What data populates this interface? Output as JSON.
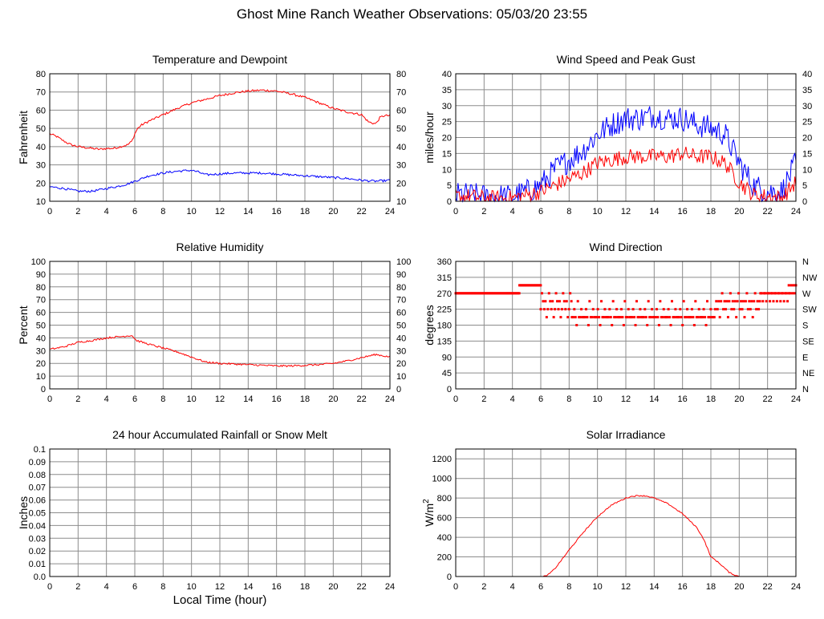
{
  "title": "Ghost Mine Ranch Weather Observations: 05/03/20 23:55",
  "colors": {
    "red": "#ff0000",
    "blue": "#0000ff",
    "grid": "#8c8c8c",
    "frame": "#000000"
  },
  "x_axis_shared_label": "Local Time (hour)",
  "chart_data": [
    {
      "id": "temp",
      "type": "line",
      "title": "Temperature and Dewpoint",
      "ylabel": "Fahrenheit",
      "xlabel": "",
      "xlim": [
        0,
        24
      ],
      "xticks": [
        0,
        2,
        4,
        6,
        8,
        10,
        12,
        14,
        16,
        18,
        20,
        22,
        24
      ],
      "ylim": [
        10,
        80
      ],
      "yticks": [
        10,
        20,
        30,
        40,
        50,
        60,
        70,
        80
      ],
      "right_ticks": [
        "10",
        "20",
        "30",
        "40",
        "50",
        "60",
        "70",
        "80"
      ],
      "grid": true,
      "series": [
        {
          "color": "#ff0000",
          "noise": 0.6,
          "x": [
            0,
            0.5,
            1,
            1.5,
            2,
            2.5,
            3,
            3.5,
            4,
            4.5,
            5,
            5.5,
            5.8,
            6,
            6.2,
            6.5,
            7,
            8,
            9,
            10,
            11,
            12,
            13,
            14,
            15,
            16,
            17,
            18,
            19,
            20,
            21,
            22,
            22.5,
            23,
            23.3,
            23.6,
            24
          ],
          "y": [
            47,
            45.5,
            43,
            41,
            40,
            39.5,
            39,
            38.5,
            39,
            39,
            40,
            41,
            43,
            47,
            50,
            52,
            54,
            57.5,
            61,
            64,
            66,
            68,
            69.5,
            70.5,
            71,
            70.5,
            69,
            67,
            64,
            61,
            59,
            57.5,
            53.5,
            52.5,
            56,
            57,
            57
          ]
        },
        {
          "color": "#0000ff",
          "noise": 0.6,
          "x": [
            0,
            1,
            2,
            3,
            4,
            5,
            5.5,
            6,
            7,
            8,
            9,
            10,
            10.5,
            11,
            12,
            13,
            14,
            15,
            16,
            17,
            18,
            19,
            20,
            21,
            22,
            23,
            24
          ],
          "y": [
            18,
            17,
            15.5,
            15.5,
            17,
            18.5,
            19.5,
            21,
            24,
            25.5,
            26.5,
            27,
            26,
            24.5,
            25,
            25.5,
            25.5,
            25.5,
            25,
            24.5,
            24,
            23.5,
            23,
            22.5,
            21.5,
            21,
            21.5
          ]
        }
      ]
    },
    {
      "id": "wind",
      "type": "line",
      "title": "Wind Speed and Peak Gust",
      "ylabel": "miles/hour",
      "xlabel": "",
      "xlim": [
        0,
        24
      ],
      "xticks": [
        0,
        2,
        4,
        6,
        8,
        10,
        12,
        14,
        16,
        18,
        20,
        22,
        24
      ],
      "ylim": [
        0,
        40
      ],
      "yticks": [
        0,
        5,
        10,
        15,
        20,
        25,
        30,
        35,
        40
      ],
      "right_ticks": [
        "0",
        "5",
        "10",
        "15",
        "20",
        "25",
        "30",
        "35",
        "40"
      ],
      "grid": true,
      "series": [
        {
          "color": "#0000ff",
          "noise": 4,
          "x": [
            0,
            1,
            2,
            3,
            4,
            5,
            6,
            7,
            8,
            9,
            10,
            11,
            12,
            13,
            14,
            15,
            16,
            17,
            18,
            19,
            20,
            21,
            22,
            23,
            24
          ],
          "y": [
            2,
            2,
            1.5,
            1.5,
            1.5,
            3,
            5,
            10,
            13,
            16,
            21,
            24,
            26,
            26,
            27,
            26,
            26,
            24,
            23,
            21,
            12,
            5,
            3,
            3,
            12
          ]
        },
        {
          "color": "#ff0000",
          "noise": 2.5,
          "x": [
            0,
            1,
            2,
            3,
            4,
            5,
            6,
            7,
            8,
            9,
            10,
            11,
            12,
            13,
            14,
            15,
            16,
            17,
            18,
            19,
            20,
            21,
            22,
            23,
            24
          ],
          "y": [
            1.5,
            1.5,
            1,
            1,
            1,
            2,
            3,
            5,
            7,
            9,
            12,
            13,
            14,
            14,
            14,
            14,
            15,
            14,
            14,
            12,
            6,
            2,
            1.5,
            1,
            6
          ]
        }
      ]
    },
    {
      "id": "rh",
      "type": "line",
      "title": "Relative Humidity",
      "ylabel": "Percent",
      "xlabel": "",
      "xlim": [
        0,
        24
      ],
      "xticks": [
        0,
        2,
        4,
        6,
        8,
        10,
        12,
        14,
        16,
        18,
        20,
        22,
        24
      ],
      "ylim": [
        0,
        100
      ],
      "yticks": [
        0,
        10,
        20,
        30,
        40,
        50,
        60,
        70,
        80,
        90,
        100
      ],
      "right_ticks": [
        "0",
        "10",
        "20",
        "30",
        "40",
        "50",
        "60",
        "70",
        "80",
        "90",
        "100"
      ],
      "grid": true,
      "series": [
        {
          "color": "#ff0000",
          "noise": 0.7,
          "x": [
            0,
            1,
            2,
            3,
            4,
            5,
            5.8,
            6.1,
            7,
            8,
            9,
            10,
            11,
            12,
            13,
            14,
            15,
            16,
            17,
            18,
            19,
            20,
            21,
            22,
            23,
            24
          ],
          "y": [
            31,
            33,
            36.5,
            38,
            40,
            41,
            42,
            38,
            35,
            32,
            29,
            25,
            21,
            20,
            19.5,
            19,
            18.5,
            18,
            18,
            18.5,
            19,
            20,
            22,
            24.5,
            27,
            25
          ]
        }
      ]
    },
    {
      "id": "dir",
      "type": "scatter",
      "title": "Wind Direction",
      "ylabel": "degrees",
      "xlabel": "",
      "xlim": [
        0,
        24
      ],
      "xticks": [
        0,
        2,
        4,
        6,
        8,
        10,
        12,
        14,
        16,
        18,
        20,
        22,
        24
      ],
      "ylim": [
        0,
        360
      ],
      "yticks": [
        0,
        45,
        90,
        135,
        180,
        225,
        270,
        315,
        360
      ],
      "right_ticks": [
        "N",
        "NE",
        "E",
        "SE",
        "S",
        "SW",
        "W",
        "NW",
        "N"
      ],
      "grid": true,
      "series": [
        {
          "color": "#ff0000",
          "segments": [
            {
              "x0": 0,
              "x1": 4.5,
              "step": 0.083,
              "values": [
                270
              ]
            },
            {
              "x0": 4.5,
              "x1": 6,
              "step": 0.083,
              "values": [
                292.5
              ]
            },
            {
              "x0": 6,
              "x1": 8.2,
              "step": 0.083,
              "values": [
                225,
                270,
                247.5,
                225,
                247.5,
                202.5
              ]
            },
            {
              "x0": 8.2,
              "x1": 18.3,
              "step": 0.083,
              "values": [
                202.5,
                202.5,
                225,
                202.5,
                180,
                247.5,
                202.5,
                202.5,
                225,
                202.5
              ]
            },
            {
              "x0": 18.3,
              "x1": 21.5,
              "step": 0.083,
              "values": [
                225,
                247.5,
                225,
                247.5,
                202.5,
                247.5,
                270
              ]
            },
            {
              "x0": 21.5,
              "x1": 23.5,
              "step": 0.083,
              "values": [
                270,
                270,
                247.5
              ]
            },
            {
              "x0": 23.5,
              "x1": 24,
              "step": 0.083,
              "values": [
                292.5,
                270
              ]
            }
          ]
        }
      ]
    },
    {
      "id": "rain",
      "type": "line",
      "title": "24 hour Accumulated Rainfall or Snow Melt",
      "ylabel": "Inches",
      "xlabel": "Local Time (hour)",
      "xlim": [
        0,
        24
      ],
      "xticks": [
        0,
        2,
        4,
        6,
        8,
        10,
        12,
        14,
        16,
        18,
        20,
        22,
        24
      ],
      "ylim": [
        0,
        0.1
      ],
      "yticks": [
        0,
        0.01,
        0.02,
        0.03,
        0.04,
        0.05,
        0.06,
        0.07,
        0.08,
        0.09,
        0.1
      ],
      "ytick_labels": [
        "0.0",
        "0.01",
        "0.02",
        "0.03",
        "0.04",
        "0.05",
        "0.06",
        "0.07",
        "0.08",
        "0.09",
        "0.1"
      ],
      "right_ticks": [],
      "grid": true,
      "series": [
        {
          "color": "#ff0000",
          "noise": 0,
          "x": [
            0,
            24
          ],
          "y": [
            0,
            0
          ]
        }
      ]
    },
    {
      "id": "solar",
      "type": "line",
      "title": "Solar Irradiance",
      "ylabel": "W/m",
      "ylabel_sup": "2",
      "xlabel": "",
      "xlim": [
        0,
        24
      ],
      "xticks": [
        0,
        2,
        4,
        6,
        8,
        10,
        12,
        14,
        16,
        18,
        20,
        22,
        24
      ],
      "ylim": [
        0,
        1300
      ],
      "yticks": [
        0,
        200,
        400,
        600,
        800,
        1000,
        1200
      ],
      "right_ticks": [],
      "grid": true,
      "series": [
        {
          "color": "#ff0000",
          "noise": 6,
          "x": [
            0,
            6.2,
            6.5,
            7,
            8,
            9,
            10,
            11,
            12,
            12.5,
            13,
            13.5,
            14,
            15,
            16,
            17,
            17.5,
            18,
            18.3,
            18.8,
            19.3,
            19.8,
            20,
            24
          ],
          "y": [
            0,
            0,
            15,
            80,
            270,
            450,
            610,
            730,
            800,
            820,
            825,
            820,
            800,
            740,
            640,
            500,
            380,
            200,
            170,
            110,
            40,
            8,
            0,
            0
          ]
        }
      ]
    }
  ]
}
